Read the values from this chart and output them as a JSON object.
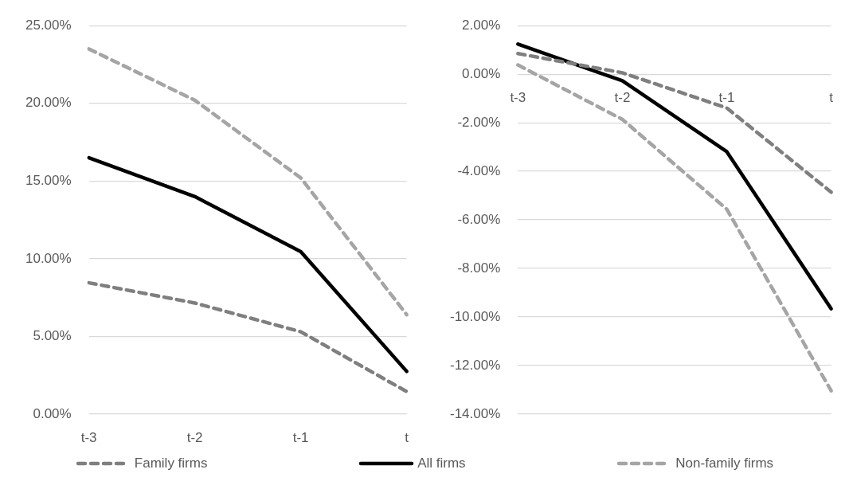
{
  "chart_data": [
    {
      "type": "line",
      "categories": [
        "t-3",
        "t-2",
        "t-1",
        "t"
      ],
      "series": [
        {
          "name": "Family firms",
          "color": "#7f7f7f",
          "line_style": "dashed",
          "values": [
            8.45,
            7.15,
            5.3,
            1.45
          ]
        },
        {
          "name": "All firms",
          "color": "#000000",
          "line_style": "solid",
          "values": [
            16.5,
            14.0,
            10.45,
            2.75
          ]
        },
        {
          "name": "Non-family firms",
          "color": "#a5a5a5",
          "line_style": "dashed",
          "values": [
            23.5,
            20.2,
            15.2,
            6.4
          ]
        }
      ],
      "ylim": [
        0,
        25
      ],
      "yticks": [
        {
          "value": 0,
          "label": "0.00%"
        },
        {
          "value": 5,
          "label": "5.00%"
        },
        {
          "value": 10,
          "label": "10.00%"
        },
        {
          "value": 15,
          "label": "15.00%"
        },
        {
          "value": 20,
          "label": "20.00%"
        },
        {
          "value": 25,
          "label": "25.00%"
        }
      ],
      "grid": "y",
      "marker": "none",
      "legend": "bottom"
    },
    {
      "type": "line",
      "categories": [
        "t-3",
        "t-2",
        "t-1",
        "t"
      ],
      "series": [
        {
          "color": "#7f7f7f",
          "line_style": "dashed",
          "values": [
            0.85,
            0.06,
            -1.39,
            -4.86
          ]
        },
        {
          "color": "#000000",
          "line_style": "solid",
          "values": [
            1.24,
            -0.27,
            -3.19,
            -9.66
          ]
        },
        {
          "color": "#a5a5a5",
          "line_style": "dashed",
          "values": [
            0.38,
            -1.86,
            -5.56,
            -13.04
          ]
        }
      ],
      "ylim": [
        -14,
        2
      ],
      "yticks": [
        {
          "value": -14,
          "label": "-14.00%"
        },
        {
          "value": -12,
          "label": "-12.00%"
        },
        {
          "value": -10,
          "label": "-10.00%"
        },
        {
          "value": -8,
          "label": "-8.00%"
        },
        {
          "value": -6,
          "label": "-6.00%"
        },
        {
          "value": -4,
          "label": "-4.00%"
        },
        {
          "value": -2,
          "label": "-2.00%"
        },
        {
          "value": 0,
          "label": "0.00%"
        },
        {
          "value": 2,
          "label": "2.00%"
        }
      ],
      "grid": "y",
      "marker": "none"
    }
  ]
}
